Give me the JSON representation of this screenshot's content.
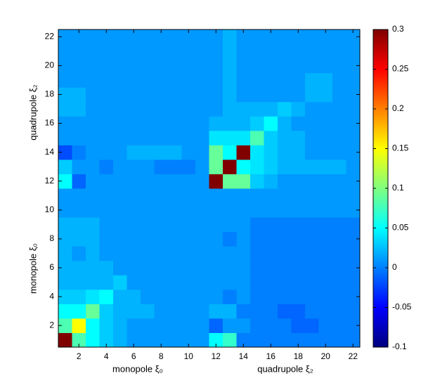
{
  "chart_data": {
    "type": "heatmap",
    "xlabels": [
      "monopole ξ₀",
      "quadrupole ξ₂"
    ],
    "ylabels": [
      "monopole ξ₀",
      "quadrupole ξ₂"
    ],
    "xlim": [
      0.5,
      22.5
    ],
    "ylim": [
      0.5,
      22.5
    ],
    "xticks": [
      2,
      4,
      6,
      8,
      10,
      12,
      14,
      16,
      18,
      20,
      22
    ],
    "yticks": [
      2,
      4,
      6,
      8,
      10,
      12,
      14,
      16,
      18,
      20,
      22
    ],
    "colormap": "jet",
    "clim": [
      -0.1,
      0.3
    ],
    "cticks": [
      -0.1,
      -0.05,
      0,
      0.05,
      0.1,
      0.15,
      0.2,
      0.25,
      0.3
    ],
    "z": [
      [
        0.3,
        0.08,
        0.05,
        0.03,
        0.02,
        0.01,
        0.01,
        0.01,
        0.01,
        0.01,
        0.01,
        0.05,
        0.07,
        0.0,
        0.0,
        0.0,
        0.0,
        0.0,
        0.0,
        0.0,
        0.0,
        0.0
      ],
      [
        0.08,
        0.15,
        0.05,
        0.03,
        0.02,
        0.01,
        0.01,
        0.01,
        0.01,
        0.01,
        0.01,
        -0.01,
        0.01,
        0.01,
        0.0,
        0.0,
        0.0,
        -0.01,
        -0.01,
        0.0,
        0.0,
        0.0
      ],
      [
        0.05,
        0.05,
        0.09,
        0.03,
        0.02,
        0.02,
        0.02,
        0.01,
        0.01,
        0.01,
        0.01,
        0.02,
        0.02,
        0.0,
        0.0,
        0.0,
        -0.01,
        -0.01,
        0.0,
        0.0,
        0.0,
        0.0
      ],
      [
        0.03,
        0.03,
        0.04,
        0.05,
        0.02,
        0.02,
        0.01,
        0.01,
        0.01,
        0.01,
        0.01,
        0.01,
        0.0,
        0.01,
        0.0,
        0.0,
        0.0,
        0.0,
        0.0,
        0.0,
        0.0,
        0.0
      ],
      [
        0.02,
        0.02,
        0.02,
        0.02,
        0.03,
        0.01,
        0.01,
        0.01,
        0.01,
        0.01,
        0.01,
        0.01,
        0.01,
        0.01,
        0.0,
        0.0,
        0.0,
        0.0,
        0.0,
        0.0,
        0.0,
        0.0
      ],
      [
        0.02,
        0.02,
        0.02,
        0.02,
        0.01,
        0.01,
        0.01,
        0.01,
        0.01,
        0.01,
        0.01,
        0.01,
        0.01,
        0.01,
        0.0,
        0.0,
        0.0,
        0.0,
        0.0,
        0.0,
        0.0,
        0.0
      ],
      [
        0.02,
        0.01,
        0.02,
        0.01,
        0.01,
        0.01,
        0.01,
        0.01,
        0.01,
        0.01,
        0.01,
        0.01,
        0.01,
        0.01,
        0.0,
        0.0,
        0.0,
        0.0,
        0.0,
        0.0,
        0.0,
        0.0
      ],
      [
        0.02,
        0.02,
        0.02,
        0.01,
        0.01,
        0.01,
        0.01,
        0.01,
        0.01,
        0.01,
        0.01,
        0.01,
        0.0,
        0.01,
        0.0,
        0.0,
        0.0,
        0.0,
        0.0,
        0.0,
        0.0,
        0.0
      ],
      [
        0.02,
        0.02,
        0.02,
        0.01,
        0.01,
        0.01,
        0.01,
        0.01,
        0.01,
        0.01,
        0.01,
        0.01,
        0.01,
        0.01,
        0.0,
        0.0,
        0.0,
        0.0,
        0.0,
        0.0,
        0.0,
        0.0
      ],
      [
        0.01,
        0.01,
        0.01,
        0.01,
        0.01,
        0.01,
        0.01,
        0.01,
        0.01,
        0.01,
        0.01,
        0.01,
        0.01,
        0.01,
        0.01,
        0.01,
        0.01,
        0.01,
        0.01,
        0.01,
        0.01,
        0.01
      ],
      [
        0.01,
        0.01,
        0.01,
        0.01,
        0.01,
        0.01,
        0.01,
        0.01,
        0.01,
        0.01,
        0.01,
        0.01,
        0.01,
        0.01,
        0.01,
        0.01,
        0.01,
        0.01,
        0.01,
        0.01,
        0.01,
        0.01
      ],
      [
        0.05,
        -0.01,
        0.01,
        0.01,
        0.01,
        0.01,
        0.01,
        0.01,
        0.01,
        0.01,
        0.01,
        0.3,
        0.09,
        0.09,
        0.03,
        0.02,
        0.01,
        0.01,
        0.01,
        0.01,
        0.01,
        0.01
      ],
      [
        0.03,
        0.01,
        0.01,
        0.0,
        0.01,
        0.01,
        0.01,
        0.0,
        0.0,
        0.0,
        0.01,
        0.09,
        0.3,
        0.05,
        0.04,
        0.03,
        0.02,
        0.02,
        0.02,
        0.02,
        0.02,
        0.01
      ],
      [
        -0.02,
        0.0,
        0.01,
        0.01,
        0.01,
        0.02,
        0.02,
        0.02,
        0.02,
        0.01,
        0.01,
        0.09,
        0.05,
        0.3,
        0.04,
        0.03,
        0.02,
        0.02,
        0.01,
        0.01,
        0.01,
        0.01
      ],
      [
        0.01,
        0.01,
        0.01,
        0.01,
        0.01,
        0.01,
        0.01,
        0.01,
        0.01,
        0.01,
        0.01,
        0.04,
        0.04,
        0.04,
        0.08,
        0.03,
        0.02,
        0.02,
        0.01,
        0.01,
        0.01,
        0.01
      ],
      [
        0.01,
        0.01,
        0.01,
        0.01,
        0.01,
        0.01,
        0.01,
        0.01,
        0.01,
        0.01,
        0.01,
        0.02,
        0.02,
        0.02,
        0.03,
        0.05,
        0.02,
        0.01,
        0.01,
        0.01,
        0.01,
        0.01
      ],
      [
        0.02,
        0.02,
        0.01,
        0.01,
        0.01,
        0.01,
        0.01,
        0.01,
        0.01,
        0.01,
        0.01,
        0.01,
        0.02,
        0.02,
        0.02,
        0.02,
        0.03,
        0.02,
        0.01,
        0.01,
        0.01,
        0.01
      ],
      [
        0.02,
        0.02,
        0.01,
        0.01,
        0.01,
        0.01,
        0.01,
        0.01,
        0.01,
        0.01,
        0.01,
        0.01,
        0.02,
        0.01,
        0.01,
        0.01,
        0.01,
        0.01,
        0.02,
        0.02,
        0.01,
        0.01
      ],
      [
        0.01,
        0.01,
        0.01,
        0.01,
        0.01,
        0.01,
        0.01,
        0.01,
        0.01,
        0.01,
        0.01,
        0.01,
        0.02,
        0.01,
        0.01,
        0.01,
        0.01,
        0.01,
        0.02,
        0.02,
        0.01,
        0.01
      ],
      [
        0.01,
        0.01,
        0.01,
        0.01,
        0.01,
        0.01,
        0.01,
        0.01,
        0.01,
        0.01,
        0.01,
        0.01,
        0.02,
        0.01,
        0.01,
        0.01,
        0.01,
        0.01,
        0.01,
        0.01,
        0.01,
        0.01
      ],
      [
        0.01,
        0.01,
        0.01,
        0.01,
        0.01,
        0.01,
        0.01,
        0.01,
        0.01,
        0.01,
        0.01,
        0.01,
        0.02,
        0.01,
        0.01,
        0.01,
        0.01,
        0.01,
        0.01,
        0.01,
        0.01,
        0.01
      ],
      [
        0.01,
        0.01,
        0.01,
        0.01,
        0.01,
        0.01,
        0.01,
        0.01,
        0.01,
        0.01,
        0.01,
        0.01,
        0.02,
        0.01,
        0.01,
        0.01,
        0.01,
        0.01,
        0.01,
        0.01,
        0.01,
        0.01
      ]
    ]
  }
}
